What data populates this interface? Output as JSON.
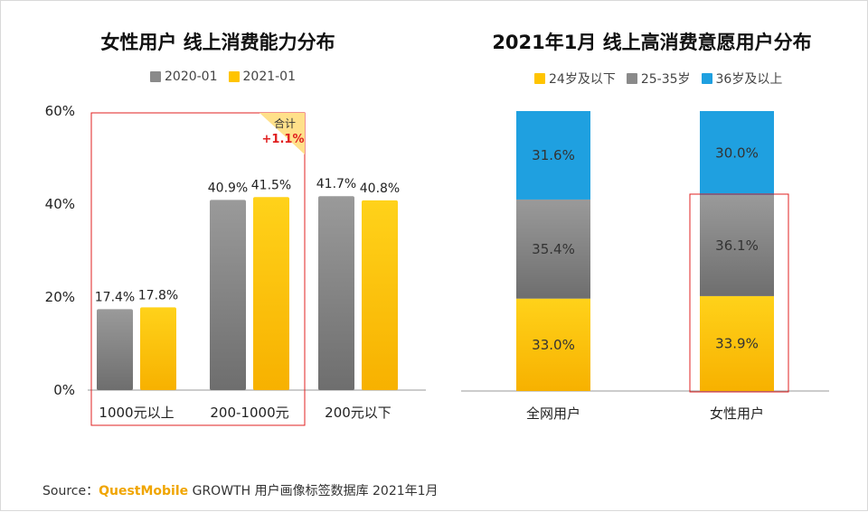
{
  "colors": {
    "gray_top": "#9a9a9a",
    "gray_bottom": "#6e6e6e",
    "yellow_top": "#ffd21a",
    "yellow_bottom": "#f7b100",
    "blue": "#1fa0e0",
    "highlight": "#e02020",
    "axis": "#999999"
  },
  "chart_data": [
    {
      "type": "bar",
      "title": "女性用户 线上消费能力分布",
      "categories": [
        "1000元以上",
        "200-1000元",
        "200元以下"
      ],
      "series": [
        {
          "name": "2020-01",
          "values": [
            17.4,
            40.9,
            41.7
          ],
          "labels": [
            "17.4%",
            "40.9%",
            "41.7%"
          ]
        },
        {
          "name": "2021-01",
          "values": [
            17.8,
            41.5,
            40.8
          ],
          "labels": [
            "17.8%",
            "41.5%",
            "40.8%"
          ]
        }
      ],
      "yticks": [
        "0%",
        "20%",
        "40%",
        "60%"
      ],
      "ylim": [
        0,
        60
      ],
      "annotation": {
        "label": "合计",
        "value": "+1.1%"
      },
      "highlight_categories": [
        "1000元以上",
        "200-1000元"
      ]
    },
    {
      "type": "bar",
      "stacked": true,
      "title": "2021年1月 线上高消费意愿用户分布",
      "categories": [
        "全网用户",
        "女性用户"
      ],
      "series": [
        {
          "name": "24岁及以下",
          "values": [
            33.0,
            33.9
          ],
          "labels": [
            "33.0%",
            "33.9%"
          ]
        },
        {
          "name": "25-35岁",
          "values": [
            35.4,
            36.1
          ],
          "labels": [
            "35.4%",
            "36.1%"
          ]
        },
        {
          "name": "36岁及以上",
          "values": [
            31.6,
            30.0
          ],
          "labels": [
            "31.6%",
            "30.0%"
          ]
        }
      ],
      "highlight_categories": [
        "女性用户"
      ]
    }
  ],
  "source": {
    "prefix": "Source：",
    "brand": "QuestMobile",
    "suffix": " GROWTH 用户画像标签数据库 2021年1月"
  }
}
